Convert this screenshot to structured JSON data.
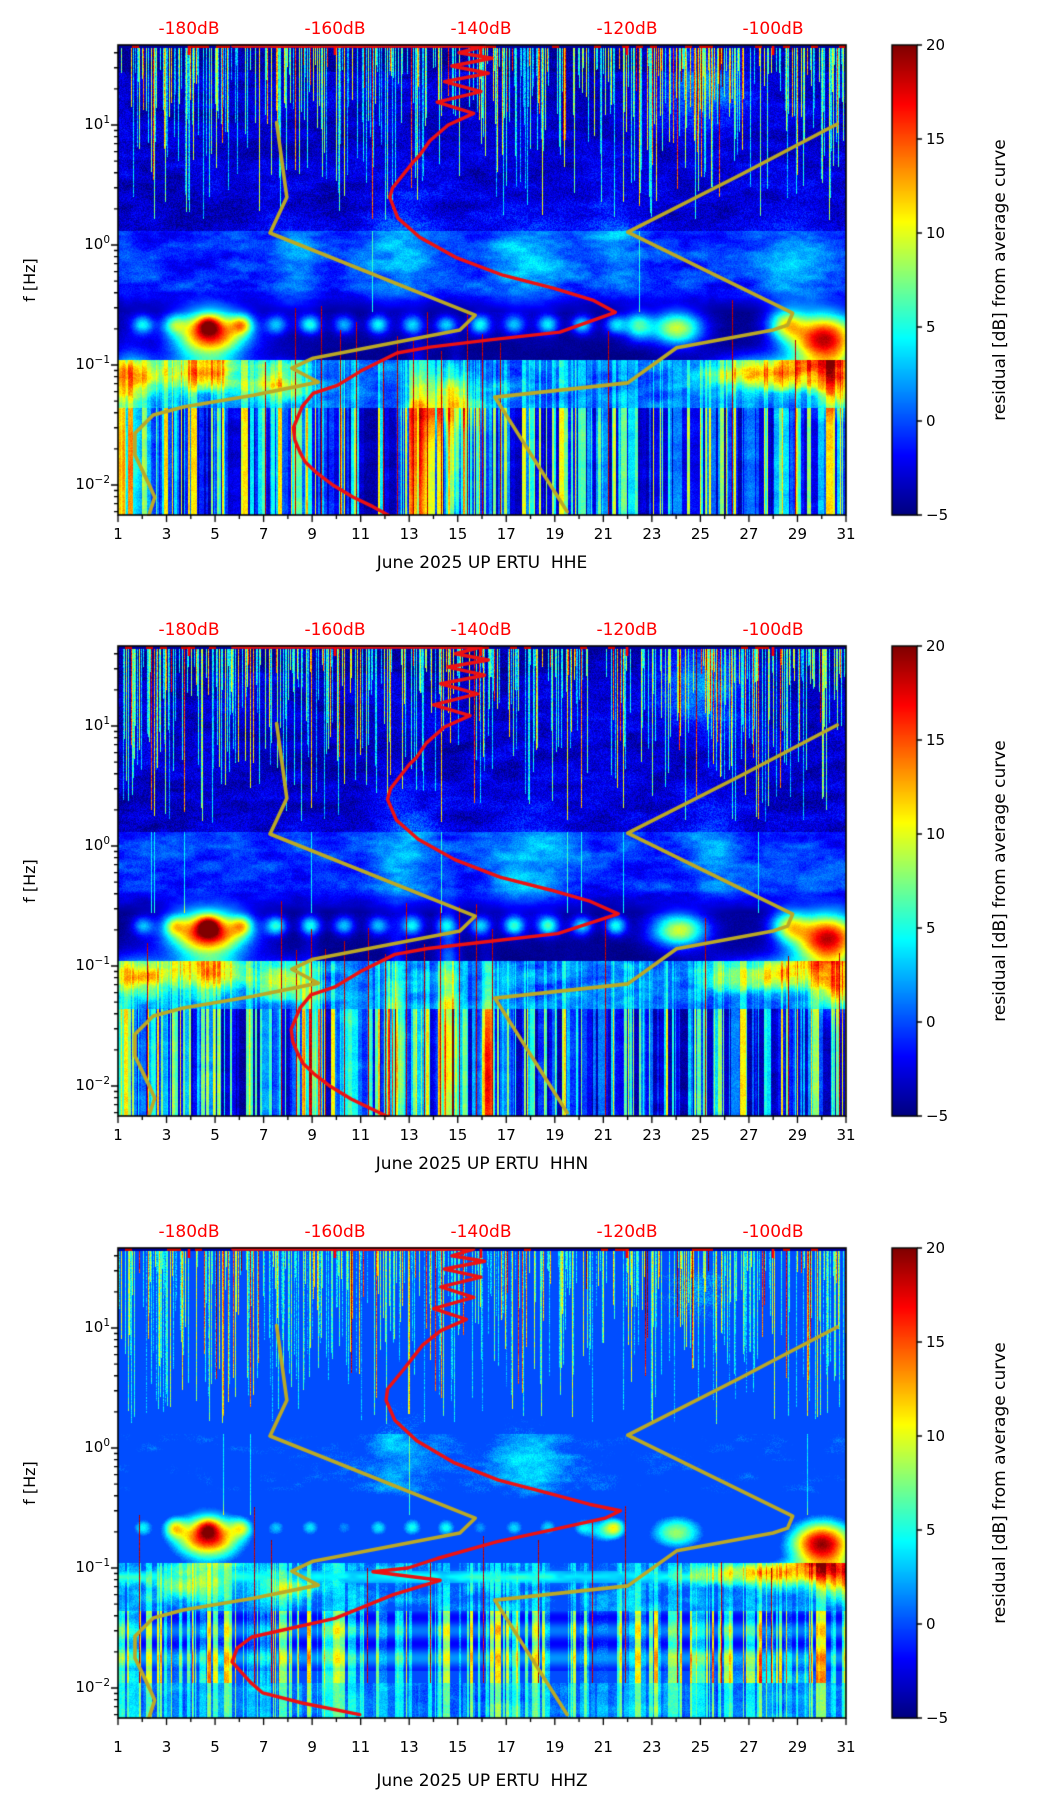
{
  "axes": {
    "y_label": "f [Hz]",
    "y_tick_base": "10",
    "y_tick_exponents": [
      "1",
      "0",
      "−1",
      "−2"
    ],
    "x_tick_labels": [
      "1",
      "3",
      "5",
      "7",
      "9",
      "11",
      "13",
      "15",
      "17",
      "19",
      "21",
      "23",
      "25",
      "27",
      "29",
      "31"
    ],
    "top_db_labels": [
      "-180dB",
      "-160dB",
      "-140dB",
      "-120dB",
      "-100dB"
    ],
    "colorbar_label": "residual [dB] from average curve",
    "colorbar_tick_labels": [
      "20",
      "15",
      "10",
      "5",
      "0",
      "−5"
    ]
  },
  "chart_data": {
    "type": "heatmap",
    "subtype": "daily-psd-spectrogram-residual",
    "x_axis": {
      "label_month": "June 2025",
      "network": "UP",
      "station": "ERTU",
      "range_days": [
        1,
        31
      ],
      "tick_days": [
        1,
        3,
        5,
        7,
        9,
        11,
        13,
        15,
        17,
        19,
        21,
        23,
        25,
        27,
        29,
        31
      ]
    },
    "y_axis": {
      "label": "f [Hz]",
      "scale": "log",
      "range_hz": [
        0.0056,
        46.4
      ],
      "tick_hz": [
        10,
        1,
        0.1,
        0.01
      ]
    },
    "color_axis": {
      "label": "residual [dB] from average curve",
      "range_db": [
        -5,
        20
      ],
      "ticks_db": [
        20,
        15,
        10,
        5,
        0,
        -5
      ],
      "colormap": "jet"
    },
    "top_db_axis": {
      "labels_db": [
        -180,
        -160,
        -140,
        -120,
        -100
      ],
      "color": "#ff0000"
    },
    "reference_curves": {
      "color": "#bba926",
      "low_noise_model_db_hz": [
        [
          -168,
          10.5
        ],
        [
          -166.6,
          2.5
        ],
        [
          -168.9,
          1.26
        ],
        [
          -140.8,
          0.26
        ],
        [
          -142.9,
          0.196
        ],
        [
          -163,
          0.114
        ],
        [
          -165.9,
          0.094
        ],
        [
          -162.3,
          0.072
        ],
        [
          -171.2,
          0.056
        ],
        [
          -180.8,
          0.0447
        ],
        [
          -184.9,
          0.0383
        ],
        [
          -187.4,
          0.027
        ],
        [
          -187.4,
          0.0178
        ],
        [
          -185.3,
          0.0096
        ],
        [
          -184.7,
          0.0079
        ],
        [
          -185.5,
          0.0056
        ]
      ],
      "high_noise_model_db_hz": [
        [
          -91.2,
          10.2
        ],
        [
          -104.5,
          3.83
        ],
        [
          -119.9,
          1.28
        ],
        [
          -97.3,
          0.271
        ],
        [
          -98,
          0.215
        ],
        [
          -100,
          0.196
        ],
        [
          -113.2,
          0.139
        ],
        [
          -119.9,
          0.071
        ],
        [
          -138.1,
          0.054
        ],
        [
          -128.2,
          0.006
        ]
      ]
    },
    "panels": [
      {
        "channel": "HHE",
        "title": "June 2025 UP ERTU  HHE",
        "mean_curve_color": "#ee1111",
        "mean_psd_db_hz": [
          [
            -174,
            45.5
          ],
          [
            -139.5,
            45.5
          ],
          [
            -143,
            40
          ],
          [
            -138.5,
            36
          ],
          [
            -144,
            31
          ],
          [
            -139,
            27
          ],
          [
            -145,
            23
          ],
          [
            -140,
            19
          ],
          [
            -146,
            15.5
          ],
          [
            -141,
            12.5
          ],
          [
            -144.5,
            10
          ],
          [
            -147,
            7.4
          ],
          [
            -148.4,
            5.6
          ],
          [
            -149.3,
            4.9
          ],
          [
            -152.1,
            3.0
          ],
          [
            -152.5,
            2.5
          ],
          [
            -151.4,
            1.68
          ],
          [
            -148.4,
            1.16
          ],
          [
            -143.3,
            0.78
          ],
          [
            -137,
            0.56
          ],
          [
            -130.1,
            0.437
          ],
          [
            -124.7,
            0.348
          ],
          [
            -121.6,
            0.275
          ],
          [
            -129.2,
            0.188
          ],
          [
            -138.8,
            0.162
          ],
          [
            -147,
            0.141
          ],
          [
            -151.5,
            0.126
          ],
          [
            -156.2,
            0.091
          ],
          [
            -159.6,
            0.068
          ],
          [
            -163,
            0.058
          ],
          [
            -164.5,
            0.045
          ],
          [
            -165.7,
            0.03
          ],
          [
            -165.5,
            0.0237
          ],
          [
            -164.8,
            0.0188
          ],
          [
            -164.1,
            0.0156
          ],
          [
            -162.5,
            0.0126
          ],
          [
            -160.3,
            0.01
          ],
          [
            -157.5,
            0.0079
          ],
          [
            -154.8,
            0.0066
          ],
          [
            -152.7,
            0.0056
          ]
        ],
        "texture": {
          "seed": 101,
          "blobs": [
            [
              4.8,
              -0.73,
              22,
              1.05,
              0.13
            ],
            [
              30.1,
              -0.78,
              23,
              1.0,
              0.15
            ],
            [
              24.0,
              -0.69,
              14,
              0.75,
              0.1
            ],
            [
              28.5,
              -0.66,
              11,
              0.5,
              0.09
            ],
            [
              22.4,
              -0.67,
              10,
              0.4,
              0.08
            ],
            [
              1.6,
              -1.1,
              9,
              0.8,
              0.12
            ],
            [
              4.6,
              -1.07,
              11,
              1.1,
              0.11
            ],
            [
              7.6,
              -1.13,
              8,
              0.8,
              0.11
            ],
            [
              27.9,
              -1.06,
              11,
              1.7,
              0.1
            ],
            [
              30.6,
              -1.17,
              10,
              0.7,
              0.14
            ],
            [
              14.6,
              -1.32,
              6,
              1.2,
              0.16
            ],
            [
              1.5,
              -1.85,
              8,
              0.5,
              0.6
            ],
            [
              13.3,
              -1.8,
              9,
              0.22,
              0.5
            ],
            [
              14.9,
              -1.78,
              8,
              0.2,
              0.45
            ],
            [
              12.6,
              0.0,
              3.5,
              1.0,
              0.35
            ],
            [
              17.8,
              -0.15,
              4,
              1.2,
              0.3
            ],
            [
              21.5,
              0.1,
              3,
              0.8,
              0.3
            ],
            [
              28.8,
              -0.1,
              3.5,
              1.0,
              0.3
            ],
            [
              8.3,
              -0.2,
              3,
              0.7,
              0.3
            ],
            [
              25.2,
              1.35,
              5,
              1.2,
              0.25
            ]
          ],
          "red_spike_days": [
            7.05,
            8.3,
            9.35,
            10.15,
            10.8,
            11.9,
            12.5,
            13.15,
            13.75,
            14.3,
            15.4,
            16.0,
            16.75,
            21.2,
            26.3,
            28.9
          ]
        }
      },
      {
        "channel": "HHN",
        "title": "June 2025 UP ERTU  HHN",
        "mean_curve_color": "#ee1111",
        "mean_psd_db_hz": [
          [
            -174,
            45.5
          ],
          [
            -140,
            45.5
          ],
          [
            -143.5,
            40
          ],
          [
            -139,
            35.5
          ],
          [
            -144.5,
            31
          ],
          [
            -139.5,
            26.5
          ],
          [
            -145.5,
            22.5
          ],
          [
            -140.5,
            18.5
          ],
          [
            -146.5,
            15
          ],
          [
            -141.5,
            12.2
          ],
          [
            -145,
            9.8
          ],
          [
            -147.5,
            7.2
          ],
          [
            -148.8,
            5.5
          ],
          [
            -149.8,
            4.8
          ],
          [
            -152.4,
            3.0
          ],
          [
            -152.8,
            2.45
          ],
          [
            -151.6,
            1.65
          ],
          [
            -148.6,
            1.14
          ],
          [
            -143.6,
            0.77
          ],
          [
            -137.4,
            0.55
          ],
          [
            -130.5,
            0.43
          ],
          [
            -125,
            0.345
          ],
          [
            -121.2,
            0.272
          ],
          [
            -129.5,
            0.186
          ],
          [
            -139,
            0.16
          ],
          [
            -147.3,
            0.14
          ],
          [
            -151.8,
            0.125
          ],
          [
            -156.5,
            0.09
          ],
          [
            -160,
            0.067
          ],
          [
            -163.3,
            0.0575
          ],
          [
            -164.8,
            0.0445
          ],
          [
            -166,
            0.0298
          ],
          [
            -165.8,
            0.0236
          ],
          [
            -165.1,
            0.0187
          ],
          [
            -164.4,
            0.0155
          ],
          [
            -162.8,
            0.0125
          ],
          [
            -160.6,
            0.0099
          ],
          [
            -157.8,
            0.0078
          ],
          [
            -155.1,
            0.0065
          ],
          [
            -152.9,
            0.0056
          ]
        ],
        "texture": {
          "seed": 202,
          "blobs": [
            [
              4.7,
              -0.72,
              23,
              1.1,
              0.13
            ],
            [
              30.2,
              -0.77,
              23,
              1.0,
              0.15
            ],
            [
              24.1,
              -0.7,
              14,
              0.8,
              0.1
            ],
            [
              28.6,
              -0.66,
              11,
              0.5,
              0.09
            ],
            [
              1.8,
              -1.08,
              10,
              0.9,
              0.12
            ],
            [
              4.8,
              -1.06,
              11,
              1.1,
              0.11
            ],
            [
              7.8,
              -1.12,
              9,
              0.8,
              0.11
            ],
            [
              27.9,
              -1.07,
              10,
              1.6,
              0.1
            ],
            [
              30.6,
              -1.16,
              10,
              0.7,
              0.14
            ],
            [
              8.9,
              -1.9,
              9,
              0.25,
              0.55
            ],
            [
              12.45,
              -1.85,
              11,
              0.25,
              0.6
            ],
            [
              14.6,
              -1.78,
              13,
              0.3,
              0.65
            ],
            [
              16.2,
              -1.9,
              8,
              0.22,
              0.5
            ],
            [
              12.8,
              0.0,
              3.5,
              1.0,
              0.35
            ],
            [
              18.0,
              -0.15,
              4,
              1.2,
              0.3
            ],
            [
              25.5,
              0.05,
              3,
              0.9,
              0.3
            ],
            [
              25.0,
              1.35,
              5,
              1.2,
              0.25
            ]
          ],
          "red_spike_days": [
            2.2,
            7.7,
            8.35,
            8.95,
            9.55,
            10.3,
            11.3,
            12.0,
            12.85,
            13.6,
            14.25,
            15.05,
            15.75,
            16.4,
            21.05,
            25.2,
            28.6,
            30.7
          ]
        }
      },
      {
        "channel": "HHZ",
        "title": "June 2025 UP ERTU  HHZ",
        "mean_curve_color": "#ee1111",
        "mean_psd_db_hz": [
          [
            -174,
            45.5
          ],
          [
            -141,
            45.5
          ],
          [
            -144,
            40
          ],
          [
            -139.5,
            36
          ],
          [
            -145,
            31
          ],
          [
            -140,
            26.5
          ],
          [
            -145.5,
            22
          ],
          [
            -141,
            18
          ],
          [
            -146.5,
            14.5
          ],
          [
            -142,
            11.8
          ],
          [
            -145.5,
            9.5
          ],
          [
            -148,
            7.2
          ],
          [
            -149.5,
            5.5
          ],
          [
            -150.5,
            4.6
          ],
          [
            -152.8,
            3.1
          ],
          [
            -153,
            2.5
          ],
          [
            -151.8,
            1.7
          ],
          [
            -148.8,
            1.15
          ],
          [
            -143.8,
            0.76
          ],
          [
            -137.6,
            0.54
          ],
          [
            -130.8,
            0.42
          ],
          [
            -125.2,
            0.34
          ],
          [
            -120.9,
            0.3
          ],
          [
            -123,
            0.26
          ],
          [
            -130,
            0.21
          ],
          [
            -137.9,
            0.165
          ],
          [
            -146,
            0.12
          ],
          [
            -150,
            0.1
          ],
          [
            -154.8,
            0.093
          ],
          [
            -145.6,
            0.079
          ],
          [
            -152,
            0.06
          ],
          [
            -160,
            0.038
          ],
          [
            -171.4,
            0.0266
          ],
          [
            -173.4,
            0.0215
          ],
          [
            -174.1,
            0.0165
          ],
          [
            -171.6,
            0.0112
          ],
          [
            -169.9,
            0.0091
          ],
          [
            -164.5,
            0.0075
          ],
          [
            -156.6,
            0.006
          ]
        ],
        "texture": {
          "seed": 303,
          "ridge_lgf": -1.07,
          "light_bottom_below_lgf": -1.95,
          "blobs": [
            [
              4.7,
              -0.74,
              22,
              1.0,
              0.13
            ],
            [
              30.0,
              -0.8,
              24,
              0.95,
              0.14
            ],
            [
              24.0,
              -0.7,
              13,
              0.8,
              0.1
            ],
            [
              21.0,
              -0.68,
              9,
              0.5,
              0.08
            ],
            [
              27.8,
              -1.04,
              10,
              2.2,
              0.07
            ],
            [
              30.8,
              -1.1,
              9,
              0.6,
              0.1
            ],
            [
              4.0,
              -1.13,
              7,
              1.2,
              0.1
            ],
            [
              8.0,
              -1.15,
              6,
              0.8,
              0.1
            ],
            [
              27.8,
              -2.1,
              6,
              2.3,
              0.28
            ],
            [
              5.0,
              -2.05,
              4,
              1.5,
              0.3
            ],
            [
              12.7,
              0.0,
              3.5,
              1.0,
              0.35
            ],
            [
              17.9,
              -0.12,
              3.5,
              1.1,
              0.3
            ],
            [
              24.8,
              1.35,
              5,
              1.2,
              0.25
            ]
          ],
          "red_spike_days": [
            1.85,
            6.6,
            7.3,
            11.25,
            13.85,
            16.05,
            18.3,
            20.55,
            21.9,
            24.05,
            25.85,
            27.9
          ]
        }
      }
    ],
    "texture_shared": {
      "scallop_days": [
        2.0,
        3.3,
        4.7,
        6.1,
        7.5,
        8.9,
        10.3,
        11.7,
        13.1,
        14.5,
        15.9,
        17.3,
        18.7,
        20.1,
        21.5
      ],
      "scallop_lgf": -0.66,
      "dark_band_hz": [
        0.112,
        0.28
      ],
      "secondary_bright_hz": [
        0.045,
        0.112
      ],
      "upper_stripe_zone_hz_above": 1.3,
      "low_stripe_zone_hz_below": 0.045
    }
  }
}
